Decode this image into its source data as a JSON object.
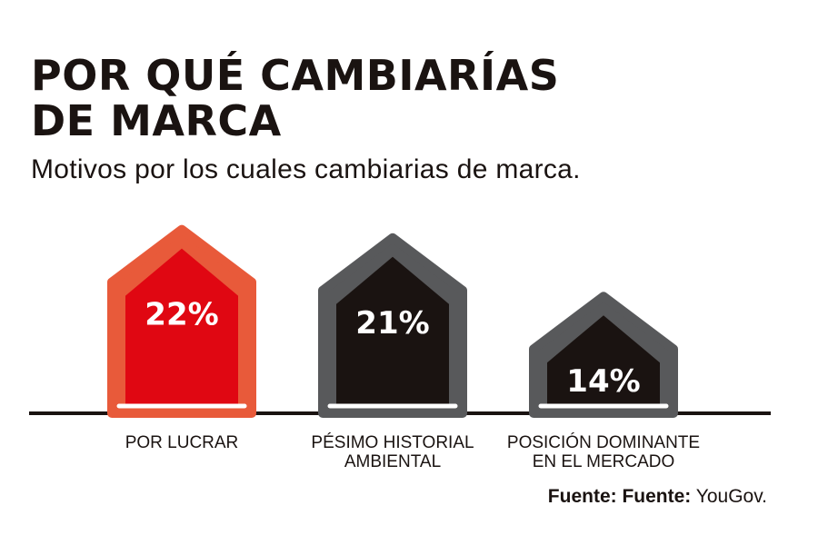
{
  "title_line1": "POR QUÉ CAMBIARÍAS",
  "title_line2": "DE MARCA",
  "subtitle": "Motivos por los cuales cambiarias de marca.",
  "source": {
    "prefix": "Fuente: Fuente:",
    "name": "YouGov."
  },
  "chart_data": {
    "type": "bar",
    "title": "POR QUÉ CAMBIARÍAS DE MARCA",
    "subtitle": "Motivos por los cuales cambiarias de marca.",
    "xlabel": "",
    "ylabel": "",
    "categories": [
      [
        "POR LUCRAR"
      ],
      [
        "PÉSIMO HISTORIAL",
        "AMBIENTAL"
      ],
      [
        "POSICIÓN DOMINANTE",
        "EN EL MERCADO"
      ]
    ],
    "values": [
      22,
      21,
      14
    ],
    "value_labels": [
      "22%",
      "21%",
      "14%"
    ],
    "unit": "%",
    "ylim": [
      0,
      26
    ],
    "colors": {
      "highlight_fill": "#e00712",
      "highlight_border": "#e85a3a",
      "fill": "#1a1311",
      "border": "#58595b",
      "baseline": "#1a1311"
    },
    "grid": false,
    "legend": "none"
  }
}
